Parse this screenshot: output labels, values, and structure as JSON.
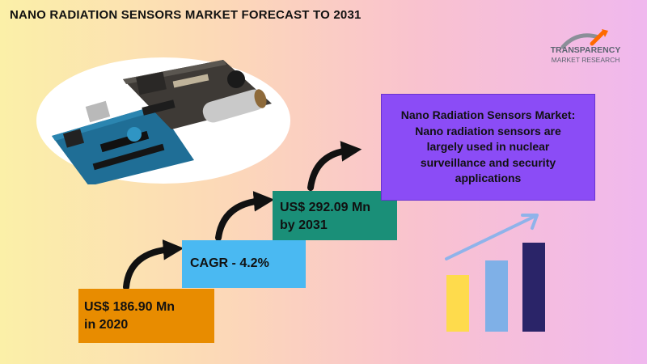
{
  "header": {
    "title": "NANO RADIATION SENSORS MARKET FORECAST TO 2031"
  },
  "logo": {
    "name": "TRANSPARENCY",
    "subtitle": "MARKET RESEARCH",
    "tagline": ""
  },
  "steps": [
    {
      "line1": "US$ 186.90 Mn",
      "line2": "in 2020",
      "color": "#e88c00"
    },
    {
      "line1": "CAGR - 4.2%",
      "line2": "",
      "color": "#4ab9f2"
    },
    {
      "line1": "US$ 292.09 Mn",
      "line2": "by 2031",
      "color": "#1a8f78"
    }
  ],
  "info_box": {
    "line1": "Nano Radiation Sensors Market:",
    "line2": "Nano radiation sensors are",
    "line3": "largely used in nuclear",
    "line4": "surveillance and security",
    "line5": "applications",
    "color": "#8b4cf6"
  },
  "icons": {
    "photo": "sensor-board-photo",
    "growth": "bar-chart-growth-icon",
    "arrows": "curved-arrow-icon"
  }
}
